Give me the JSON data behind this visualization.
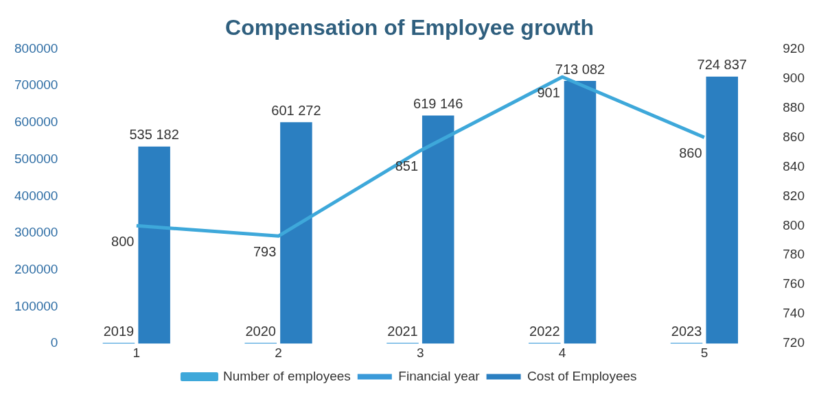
{
  "chart_data": {
    "type": "bar",
    "title": "Compensation of Employee growth",
    "categories": [
      "1",
      "2",
      "3",
      "4",
      "5"
    ],
    "series": [
      {
        "name": "Financial year",
        "color": "#3a9ad9",
        "values": [
          2019,
          2020,
          2021,
          2022,
          2023
        ]
      },
      {
        "name": "Cost of Employees",
        "color": "#2b7fc1",
        "values": [
          535182,
          601272,
          619146,
          713082,
          724837
        ],
        "value_labels": [
          "535 182",
          "601 272",
          "619 146",
          "713 082",
          "724 837"
        ]
      },
      {
        "name": "Number of employees",
        "type": "line",
        "axis": "y2",
        "color": "#3ea8da",
        "values": [
          800,
          793,
          851,
          901,
          860
        ]
      }
    ],
    "ylim": [
      0,
      800000
    ],
    "yticks": [
      0,
      100000,
      200000,
      300000,
      400000,
      500000,
      600000,
      700000,
      800000
    ],
    "y2lim": [
      720,
      920
    ],
    "y2ticks": [
      720,
      740,
      760,
      780,
      800,
      820,
      840,
      860,
      880,
      900,
      920
    ],
    "data_labels": true,
    "legend": "bottom",
    "grid": false,
    "marker": "none"
  }
}
